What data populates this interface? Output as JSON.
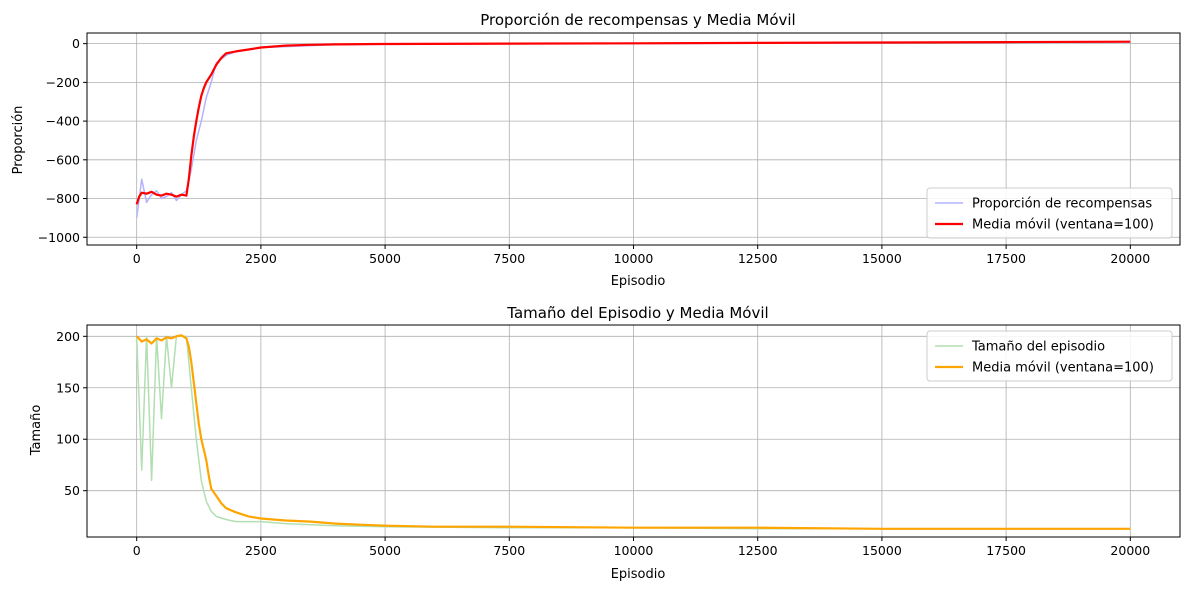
{
  "chart_data": [
    {
      "type": "line",
      "title": "Proporción de recompensas y Media Móvil",
      "xlabel": "Episodio",
      "ylabel": "Proporción",
      "xlim": [
        -1000,
        21000
      ],
      "ylim": [
        -1040,
        55
      ],
      "xticks": [
        0,
        2500,
        5000,
        7500,
        10000,
        12500,
        15000,
        17500,
        20000
      ],
      "yticks": [
        -1000,
        -800,
        -600,
        -400,
        -200,
        0
      ],
      "grid": true,
      "legend_position": "lower-right",
      "series": [
        {
          "name": "Proporción de recompensas",
          "color": "#b3b3ff",
          "x": [
            0,
            100,
            200,
            300,
            400,
            500,
            600,
            700,
            800,
            900,
            1000,
            1100,
            1200,
            1300,
            1400,
            1500,
            1600,
            1800,
            2000,
            2250,
            2500,
            3000,
            3500,
            4000,
            5000,
            7500,
            10000,
            12500,
            15000,
            17500,
            20000
          ],
          "y": [
            -900,
            -700,
            -820,
            -780,
            -760,
            -800,
            -790,
            -770,
            -810,
            -780,
            -760,
            -650,
            -500,
            -400,
            -280,
            -200,
            -100,
            -60,
            -40,
            -30,
            -20,
            -15,
            -10,
            -5,
            -3,
            -1,
            0,
            2,
            4,
            6,
            8
          ]
        },
        {
          "name": "Media móvil (ventana=100)",
          "color": "#ff0000",
          "x": [
            0,
            50,
            100,
            200,
            300,
            400,
            500,
            600,
            700,
            800,
            900,
            1000,
            1050,
            1100,
            1150,
            1200,
            1250,
            1300,
            1350,
            1400,
            1450,
            1500,
            1600,
            1700,
            1800,
            2000,
            2250,
            2500,
            3000,
            3500,
            4000,
            5000,
            7500,
            10000,
            12500,
            15000,
            17500,
            20000
          ],
          "y": [
            -830,
            -790,
            -770,
            -775,
            -765,
            -780,
            -785,
            -775,
            -780,
            -790,
            -780,
            -785,
            -700,
            -580,
            -480,
            -400,
            -330,
            -270,
            -230,
            -200,
            -180,
            -160,
            -110,
            -75,
            -50,
            -40,
            -30,
            -20,
            -10,
            -6,
            -4,
            -2,
            0,
            2,
            4,
            6,
            8,
            10
          ]
        }
      ]
    },
    {
      "type": "line",
      "title": "Tamaño del Episodio y Media Móvil",
      "xlabel": "Episodio",
      "ylabel": "Tamaño",
      "xlim": [
        -1000,
        21000
      ],
      "ylim": [
        5,
        211
      ],
      "xticks": [
        0,
        2500,
        5000,
        7500,
        10000,
        12500,
        15000,
        17500,
        20000
      ],
      "yticks": [
        50,
        100,
        150,
        200
      ],
      "grid": true,
      "legend_position": "upper-right",
      "series": [
        {
          "name": "Tamaño del episodio",
          "color": "#b2dfb2",
          "x": [
            0,
            100,
            200,
            300,
            400,
            500,
            600,
            700,
            800,
            900,
            1000,
            1100,
            1200,
            1300,
            1400,
            1500,
            1600,
            1800,
            2000,
            2500,
            3000,
            3500,
            4000,
            5000,
            7500,
            10000,
            12500,
            15000,
            17500,
            20000
          ],
          "y": [
            200,
            70,
            200,
            60,
            200,
            120,
            200,
            150,
            200,
            200,
            200,
            150,
            100,
            60,
            40,
            30,
            25,
            22,
            20,
            20,
            18,
            17,
            16,
            15,
            14,
            14,
            13,
            13,
            13,
            13
          ]
        },
        {
          "name": "Media móvil (ventana=100)",
          "color": "#ffa500",
          "x": [
            0,
            100,
            200,
            300,
            400,
            500,
            600,
            700,
            800,
            900,
            1000,
            1050,
            1100,
            1150,
            1200,
            1250,
            1300,
            1350,
            1400,
            1450,
            1500,
            1600,
            1700,
            1800,
            2000,
            2250,
            2500,
            3000,
            3500,
            4000,
            4500,
            5000,
            6000,
            7500,
            10000,
            12500,
            15000,
            17500,
            20000
          ],
          "y": [
            200,
            195,
            197,
            193,
            198,
            196,
            199,
            198,
            200,
            201,
            198,
            190,
            175,
            155,
            135,
            115,
            100,
            90,
            80,
            65,
            52,
            45,
            38,
            33,
            29,
            25,
            23,
            21,
            20,
            18,
            17,
            16,
            15,
            15,
            14,
            14,
            13,
            13,
            13
          ]
        }
      ]
    }
  ]
}
